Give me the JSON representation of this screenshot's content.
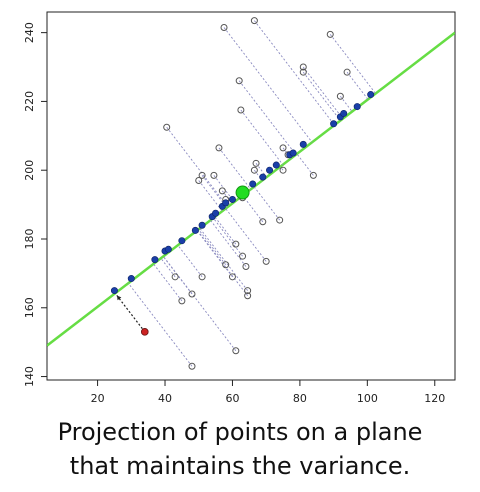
{
  "chart_data": {
    "type": "scatter",
    "title": "",
    "xlabel": "",
    "ylabel": "",
    "xlim": [
      5,
      126
    ],
    "ylim": [
      139,
      246
    ],
    "x_ticks": [
      20,
      40,
      60,
      80,
      100,
      120
    ],
    "y_ticks": [
      140,
      160,
      180,
      200,
      220,
      240
    ],
    "grid": false,
    "colors": {
      "fit_line": "#66dd44",
      "projected_point": "#1a3fa8",
      "mean_point": "#22dd22",
      "highlight_point": "#cc2222",
      "original_point": "#555555",
      "projection_lines": "#8a8ac0"
    },
    "fit_line": {
      "points": [
        [
          5,
          149
        ],
        [
          126,
          240
        ]
      ]
    },
    "mean_point": {
      "x": 63,
      "y": 193.5
    },
    "highlight_point": {
      "x": 34,
      "y": 153
    },
    "original_points": [
      [
        34,
        153
      ],
      [
        40.5,
        212.5
      ],
      [
        48,
        143
      ],
      [
        51,
        169
      ],
      [
        57.5,
        241.5
      ],
      [
        56,
        206.5
      ],
      [
        50,
        197
      ],
      [
        51,
        198.5
      ],
      [
        54.5,
        198.5
      ],
      [
        57,
        194
      ],
      [
        58,
        191.5
      ],
      [
        60,
        169
      ],
      [
        61,
        147.5
      ],
      [
        62,
        226
      ],
      [
        62.5,
        217.5
      ],
      [
        61,
        178.5
      ],
      [
        63,
        192
      ],
      [
        63,
        175
      ],
      [
        64,
        172
      ],
      [
        64.5,
        165
      ],
      [
        64.5,
        163.5
      ],
      [
        66.5,
        243.5
      ],
      [
        67,
        202
      ],
      [
        66.5,
        200
      ],
      [
        69,
        185
      ],
      [
        70,
        173.5
      ],
      [
        74,
        185.5
      ],
      [
        75,
        206.5
      ],
      [
        75,
        200
      ],
      [
        76.5,
        204.5
      ],
      [
        81,
        230
      ],
      [
        81,
        228.5
      ],
      [
        84,
        198.5
      ],
      [
        89,
        239.5
      ],
      [
        92,
        221.5
      ],
      [
        94,
        228.5
      ],
      [
        43,
        169
      ],
      [
        45,
        162
      ],
      [
        48,
        164
      ],
      [
        58,
        172.5
      ]
    ],
    "projected_points": [
      [
        25,
        165
      ],
      [
        30,
        168.5
      ],
      [
        37,
        174
      ],
      [
        40,
        176.5
      ],
      [
        41,
        177
      ],
      [
        45,
        179.5
      ],
      [
        49,
        182.5
      ],
      [
        51,
        184
      ],
      [
        54,
        186.5
      ],
      [
        55,
        187.5
      ],
      [
        57,
        189.5
      ],
      [
        58,
        190.5
      ],
      [
        60,
        191.5
      ],
      [
        66,
        196
      ],
      [
        69,
        198
      ],
      [
        71,
        200
      ],
      [
        73,
        201.5
      ],
      [
        77,
        204.5
      ],
      [
        78,
        205
      ],
      [
        81,
        207.5
      ],
      [
        90,
        213.5
      ],
      [
        92,
        215.5
      ],
      [
        93,
        216.5
      ],
      [
        97,
        218.5
      ],
      [
        101,
        222
      ]
    ]
  },
  "caption": {
    "line1": "Projection of points on a plane",
    "line2": "that maintains the variance."
  }
}
